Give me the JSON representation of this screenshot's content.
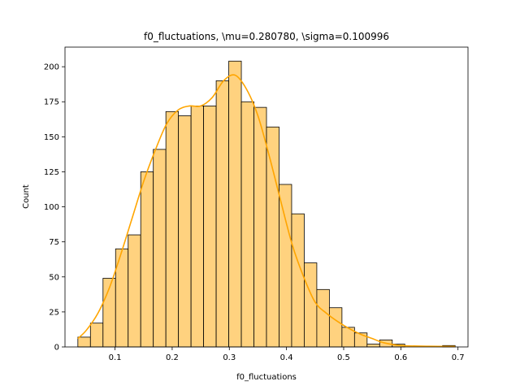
{
  "chart_data": {
    "type": "bar",
    "title": "f0_fluctuations, \\mu=0.280780, \\sigma=0.100996",
    "xlabel": "f0_fluctuations",
    "ylabel": "Count",
    "xlim": [
      0.0125,
      0.7175
    ],
    "ylim": [
      0,
      214
    ],
    "grid": false,
    "legend": "none",
    "bar_color": "#ffd27f",
    "bar_edge_color": "#000000",
    "kde_color": "#ffa500",
    "x_ticks": [
      0.1,
      0.2,
      0.3,
      0.4,
      0.5,
      0.6,
      0.7
    ],
    "x_tick_labels": [
      "0.1",
      "0.2",
      "0.3",
      "0.4",
      "0.5",
      "0.6",
      "0.7"
    ],
    "y_ticks": [
      0,
      25,
      50,
      75,
      100,
      125,
      150,
      175,
      200
    ],
    "y_tick_labels": [
      "0",
      "25",
      "50",
      "75",
      "100",
      "125",
      "150",
      "175",
      "200"
    ],
    "bin_edges": [
      0.035,
      0.057,
      0.079,
      0.101,
      0.123,
      0.145,
      0.167,
      0.189,
      0.211,
      0.233,
      0.255,
      0.277,
      0.299,
      0.321,
      0.343,
      0.365,
      0.387,
      0.409,
      0.431,
      0.453,
      0.475,
      0.497,
      0.519,
      0.541,
      0.563,
      0.585,
      0.607,
      0.629,
      0.651,
      0.673,
      0.695
    ],
    "values": [
      7,
      17,
      49,
      70,
      80,
      125,
      141,
      168,
      165,
      172,
      172,
      190,
      204,
      175,
      171,
      157,
      116,
      95,
      60,
      41,
      28,
      14,
      10,
      2,
      5,
      2,
      0,
      0,
      0,
      1
    ],
    "kde": {
      "x": [
        0.035,
        0.05,
        0.07,
        0.09,
        0.11,
        0.13,
        0.15,
        0.17,
        0.19,
        0.21,
        0.23,
        0.25,
        0.27,
        0.29,
        0.31,
        0.33,
        0.35,
        0.37,
        0.39,
        0.41,
        0.43,
        0.45,
        0.47,
        0.49,
        0.51,
        0.53,
        0.55,
        0.57,
        0.6,
        0.65,
        0.695
      ],
      "y": [
        6,
        12,
        24,
        42,
        66,
        92,
        118,
        140,
        159,
        169,
        172,
        172,
        178,
        190,
        194,
        184,
        165,
        136,
        104,
        73,
        50,
        32,
        24,
        18,
        13,
        9,
        6,
        3,
        1,
        0.5,
        0.3
      ]
    }
  }
}
